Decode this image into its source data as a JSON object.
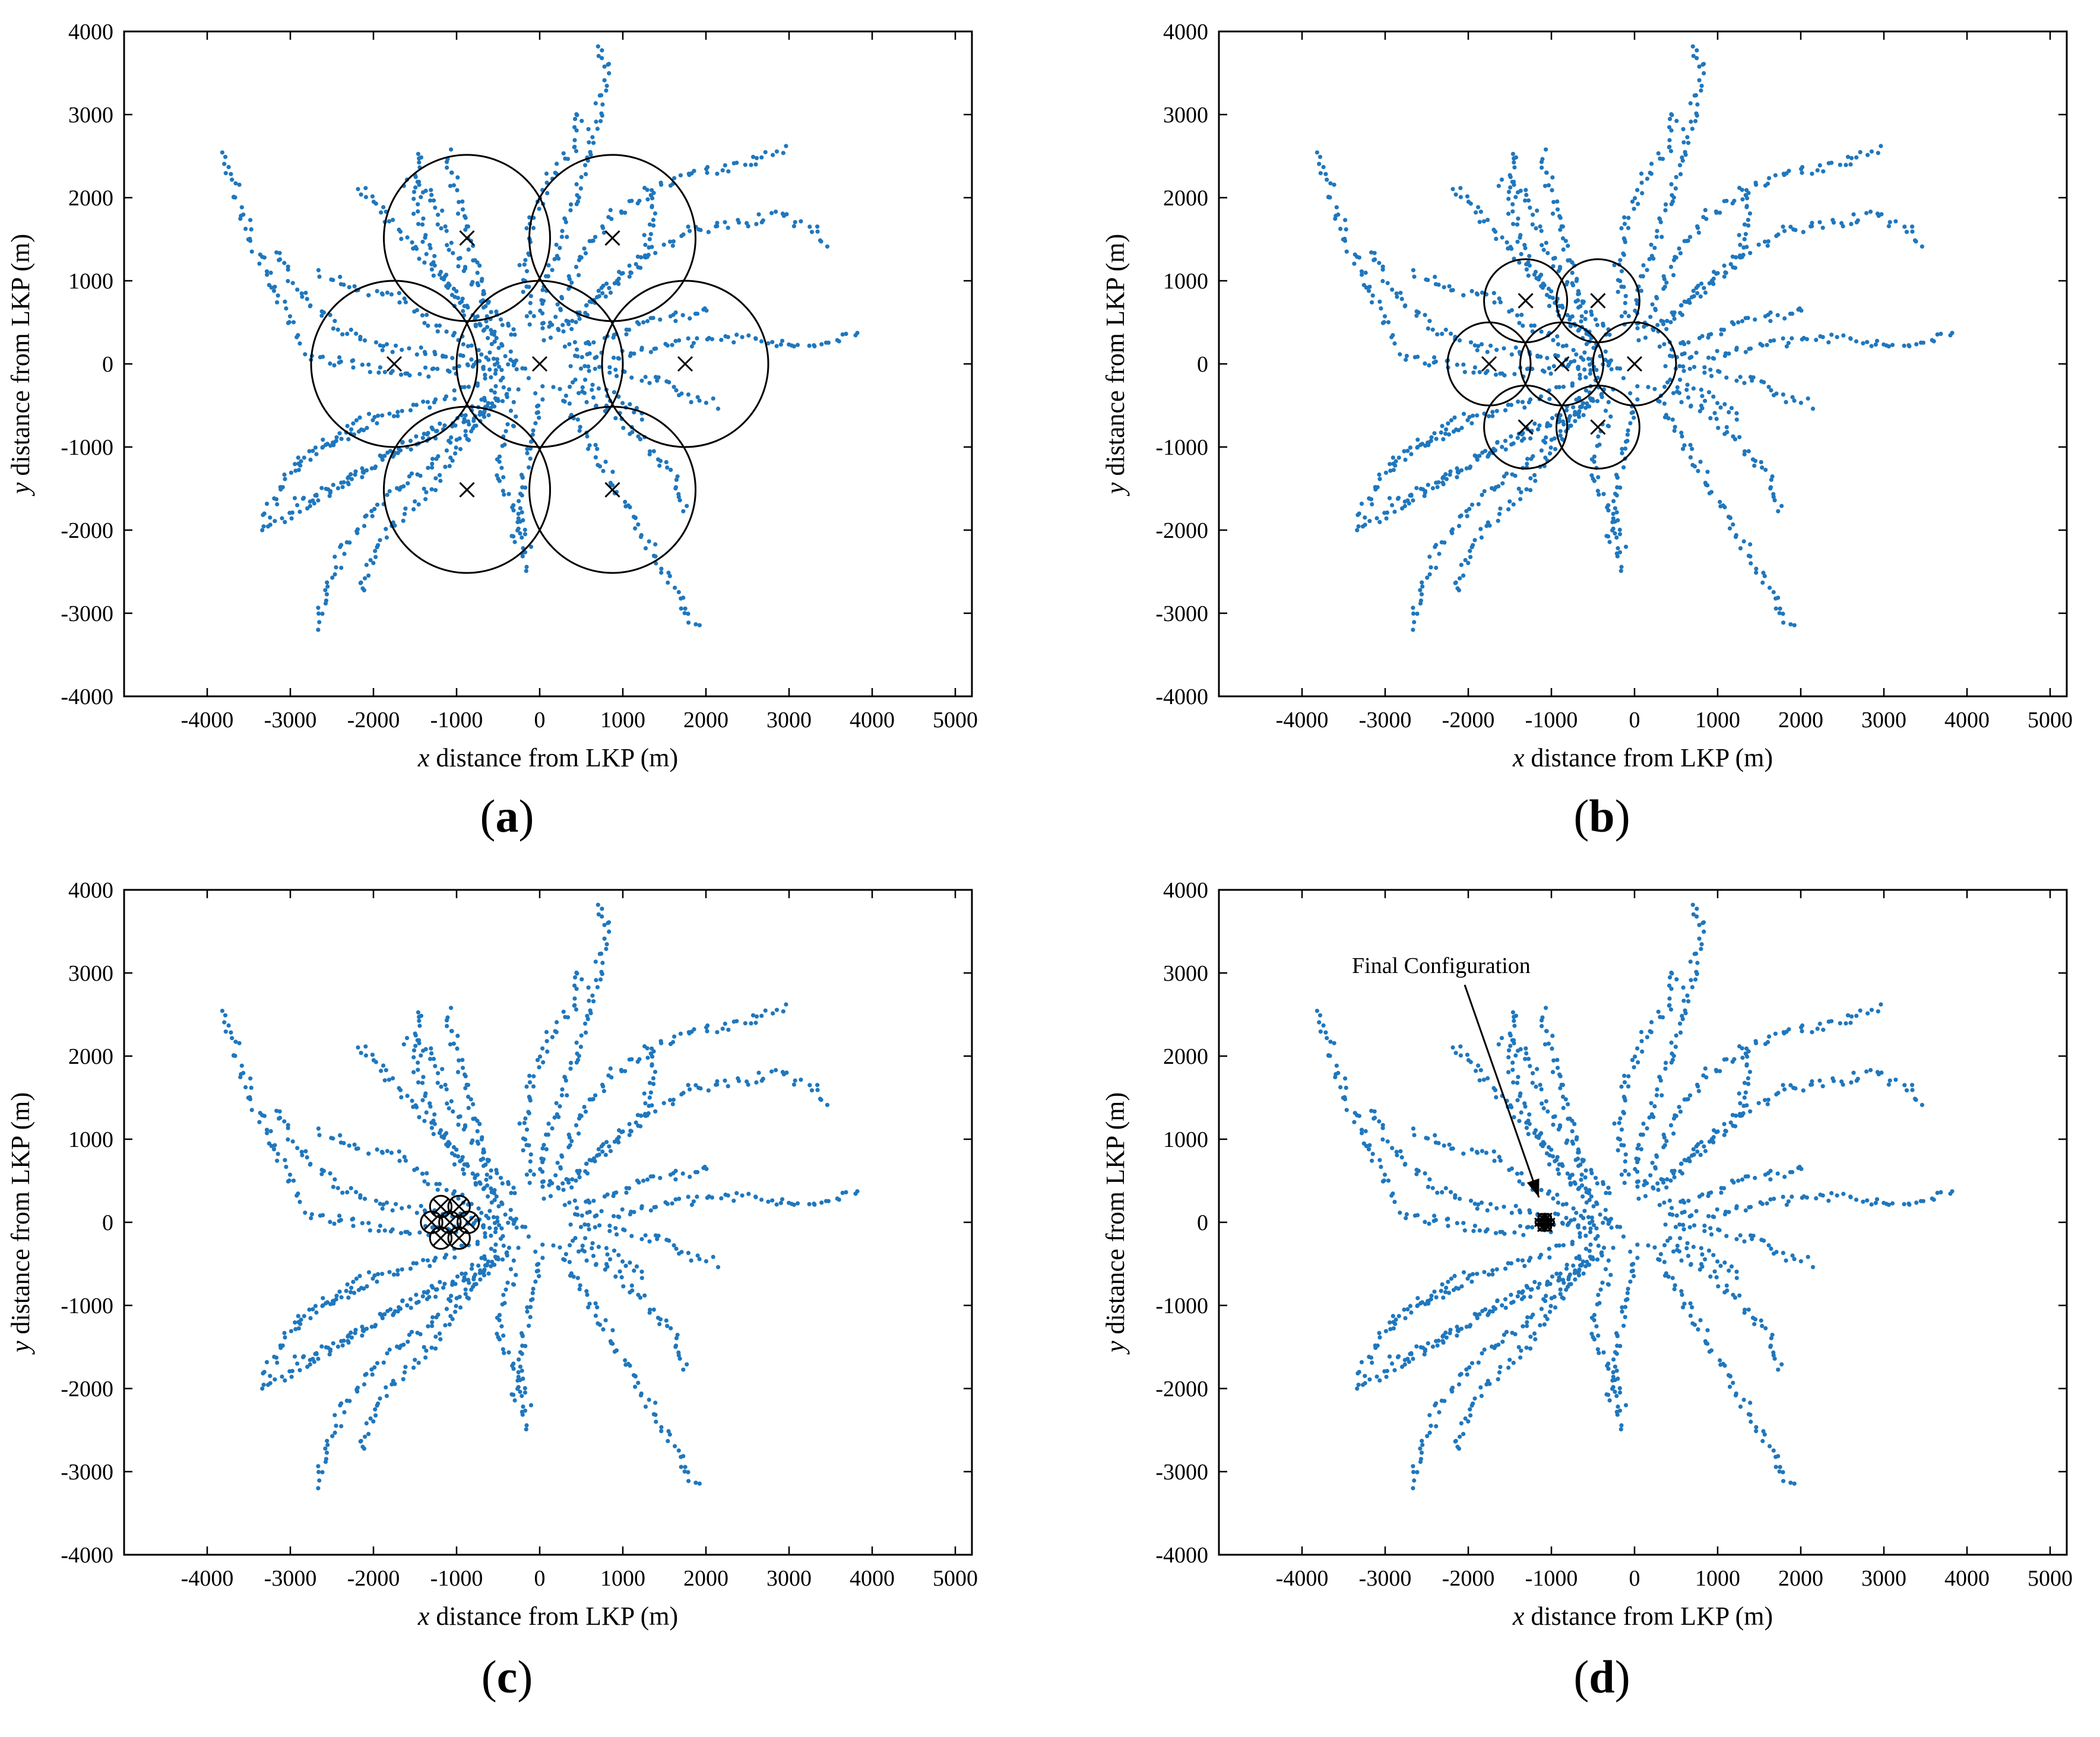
{
  "figure": {
    "captions": [
      "a",
      "b",
      "c",
      "d"
    ],
    "colors": {
      "trajectory": "#1f77bd",
      "axes": "#000000",
      "circle": "#000000"
    }
  },
  "chart_data": [
    {
      "type": "scatter",
      "panel": "a",
      "xlabel_var": "x",
      "xlabel_rest": " distance from LKP (m)",
      "ylabel_var": "y",
      "ylabel_rest": " distance from LKP (m)",
      "xlim": [
        -5000,
        5200
      ],
      "ylim": [
        -4000,
        4000
      ],
      "xticks": [
        -4000,
        -3000,
        -2000,
        -1000,
        0,
        1000,
        2000,
        3000,
        4000,
        5000
      ],
      "yticks": [
        -4000,
        -3000,
        -2000,
        -1000,
        0,
        1000,
        2000,
        3000,
        4000
      ],
      "grid": false,
      "sensor_radius": 1000,
      "sensors": [
        [
          0,
          0
        ],
        [
          1750,
          0
        ],
        [
          875,
          1515
        ],
        [
          -875,
          1515
        ],
        [
          -1750,
          0
        ],
        [
          -875,
          -1515
        ],
        [
          875,
          -1515
        ]
      ],
      "annotation": null
    },
    {
      "type": "scatter",
      "panel": "b",
      "xlabel_var": "x",
      "xlabel_rest": " distance from LKP (m)",
      "ylabel_var": "y",
      "ylabel_rest": " distance from LKP (m)",
      "xlim": [
        -5000,
        5200
      ],
      "ylim": [
        -4000,
        4000
      ],
      "xticks": [
        -4000,
        -3000,
        -2000,
        -1000,
        0,
        1000,
        2000,
        3000,
        4000,
        5000
      ],
      "yticks": [
        -4000,
        -3000,
        -2000,
        -1000,
        0,
        1000,
        2000,
        3000,
        4000
      ],
      "grid": false,
      "sensor_radius": 500,
      "sensors": [
        [
          -875,
          0
        ],
        [
          0,
          0
        ],
        [
          -440,
          760
        ],
        [
          -1310,
          760
        ],
        [
          -1750,
          0
        ],
        [
          -1310,
          -760
        ],
        [
          -440,
          -760
        ]
      ],
      "annotation": null
    },
    {
      "type": "scatter",
      "panel": "c",
      "xlabel_var": "x",
      "xlabel_rest": " distance from LKP (m)",
      "ylabel_var": "y",
      "ylabel_rest": " distance from LKP (m)",
      "xlim": [
        -5000,
        5200
      ],
      "ylim": [
        -4000,
        4000
      ],
      "xticks": [
        -4000,
        -3000,
        -2000,
        -1000,
        0,
        1000,
        2000,
        3000,
        4000,
        5000
      ],
      "yticks": [
        -4000,
        -3000,
        -2000,
        -1000,
        0,
        1000,
        2000,
        3000,
        4000
      ],
      "grid": false,
      "sensor_radius": 130,
      "sensors": [
        [
          -1080,
          0
        ],
        [
          -860,
          0
        ],
        [
          -970,
          190
        ],
        [
          -1190,
          190
        ],
        [
          -1300,
          0
        ],
        [
          -1190,
          -190
        ],
        [
          -970,
          -190
        ]
      ],
      "annotation": null
    },
    {
      "type": "scatter",
      "panel": "d",
      "xlabel_var": "x",
      "xlabel_rest": " distance from LKP (m)",
      "ylabel_var": "y",
      "ylabel_rest": " distance from LKP (m)",
      "xlim": [
        -5000,
        5200
      ],
      "ylim": [
        -4000,
        4000
      ],
      "xticks": [
        -4000,
        -3000,
        -2000,
        -1000,
        0,
        1000,
        2000,
        3000,
        4000,
        5000
      ],
      "yticks": [
        -4000,
        -3000,
        -2000,
        -1000,
        0,
        1000,
        2000,
        3000,
        4000
      ],
      "grid": false,
      "sensor_radius": 40,
      "sensors": [
        [
          -1080,
          0
        ],
        [
          -1010,
          0
        ],
        [
          -1045,
          60
        ],
        [
          -1115,
          60
        ],
        [
          -1150,
          0
        ],
        [
          -1115,
          -60
        ],
        [
          -1045,
          -60
        ]
      ],
      "annotation": {
        "text": "Final Configuration",
        "text_at": [
          -3400,
          3000
        ],
        "arrow_to": [
          -1150,
          300
        ]
      }
    }
  ],
  "trajectories": {
    "description_units": "m",
    "paths": [
      [
        [
          -150,
          -150
        ],
        [
          -500,
          200
        ],
        [
          -900,
          700
        ],
        [
          -1300,
          1300
        ],
        [
          -1500,
          1900
        ],
        [
          -1400,
          2600
        ]
      ],
      [
        [
          -300,
          -100
        ],
        [
          -800,
          200
        ],
        [
          -1300,
          500
        ],
        [
          -1700,
          800
        ],
        [
          -2200,
          900
        ],
        [
          -2700,
          1100
        ]
      ],
      [
        [
          -400,
          200
        ],
        [
          -900,
          600
        ],
        [
          -1300,
          1200
        ],
        [
          -1800,
          1700
        ],
        [
          -2200,
          2200
        ]
      ],
      [
        [
          -300,
          300
        ],
        [
          -700,
          800
        ],
        [
          -1100,
          1500
        ],
        [
          -1300,
          2100
        ],
        [
          -1700,
          2200
        ]
      ],
      [
        [
          -600,
          0
        ],
        [
          -1200,
          100
        ],
        [
          -1800,
          200
        ],
        [
          -2400,
          400
        ],
        [
          -2900,
          900
        ],
        [
          -3200,
          1400
        ]
      ],
      [
        [
          -500,
          0
        ],
        [
          -1200,
          -100
        ],
        [
          -1800,
          -100
        ],
        [
          -2300,
          0
        ],
        [
          -2900,
          100
        ]
      ],
      [
        [
          -500,
          -100
        ],
        [
          -1100,
          -400
        ],
        [
          -1800,
          -600
        ],
        [
          -2400,
          -900
        ],
        [
          -3000,
          -1200
        ]
      ],
      [
        [
          -400,
          -200
        ],
        [
          -1000,
          -700
        ],
        [
          -1700,
          -1000
        ],
        [
          -2300,
          -1400
        ],
        [
          -2800,
          -1700
        ],
        [
          -3300,
          -2000
        ]
      ],
      [
        [
          -400,
          -300
        ],
        [
          -900,
          -800
        ],
        [
          -1400,
          -1300
        ],
        [
          -2000,
          -1700
        ],
        [
          -2400,
          -2300
        ],
        [
          -2600,
          -2900
        ],
        [
          -2700,
          -3200
        ]
      ],
      [
        [
          -500,
          -400
        ],
        [
          -900,
          -900
        ],
        [
          -1300,
          -1500
        ],
        [
          -1700,
          -1900
        ],
        [
          -2000,
          -2300
        ],
        [
          -2200,
          -2800
        ]
      ],
      [
        [
          -300,
          -300
        ],
        [
          -700,
          -600
        ],
        [
          -1200,
          -800
        ],
        [
          -1800,
          -1100
        ],
        [
          -2500,
          -1500
        ],
        [
          -3000,
          -1700
        ]
      ],
      [
        [
          -2900,
          300
        ],
        [
          -3300,
          1100
        ],
        [
          -3600,
          1900
        ],
        [
          -3800,
          2600
        ]
      ],
      [
        [
          -2000,
          -600
        ],
        [
          -2500,
          -900
        ],
        [
          -3000,
          -1300
        ],
        [
          -3400,
          -2000
        ]
      ],
      [
        [
          -600,
          500
        ],
        [
          -800,
          1300
        ],
        [
          -1000,
          2000
        ],
        [
          -1100,
          2600
        ]
      ],
      [
        [
          0,
          -300
        ],
        [
          -100,
          -900
        ],
        [
          -200,
          -1500
        ],
        [
          -300,
          -2100
        ],
        [
          -100,
          -2500
        ]
      ],
      [
        [
          -300,
          -500
        ],
        [
          -400,
          -900
        ],
        [
          -500,
          -1300
        ],
        [
          -300,
          -1800
        ],
        [
          -100,
          -2200
        ]
      ],
      [
        [
          200,
          -300
        ],
        [
          500,
          -800
        ],
        [
          800,
          -1300
        ],
        [
          1100,
          -1800
        ],
        [
          1400,
          -2300
        ],
        [
          1700,
          -2900
        ],
        [
          1900,
          -3200
        ]
      ],
      [
        [
          400,
          -300
        ],
        [
          900,
          -600
        ],
        [
          1300,
          -1000
        ],
        [
          1600,
          -1300
        ],
        [
          1800,
          -1800
        ]
      ],
      [
        [
          400,
          -200
        ],
        [
          900,
          -400
        ],
        [
          1300,
          -700
        ]
      ],
      [
        [
          300,
          200
        ],
        [
          800,
          300
        ],
        [
          1300,
          500
        ],
        [
          1800,
          600
        ],
        [
          2100,
          700
        ]
      ],
      [
        [
          400,
          100
        ],
        [
          1000,
          100
        ],
        [
          1500,
          200
        ],
        [
          2000,
          300
        ],
        [
          2500,
          300
        ],
        [
          3100,
          200
        ],
        [
          3500,
          300
        ],
        [
          3900,
          400
        ]
      ],
      [
        [
          400,
          0
        ],
        [
          900,
          -100
        ],
        [
          1400,
          -200
        ],
        [
          1800,
          -400
        ],
        [
          2200,
          -500
        ]
      ],
      [
        [
          100,
          300
        ],
        [
          300,
          800
        ],
        [
          500,
          1300
        ],
        [
          900,
          1800
        ],
        [
          1400,
          2100
        ],
        [
          1900,
          2300
        ],
        [
          2500,
          2400
        ],
        [
          3000,
          2600
        ]
      ],
      [
        [
          300,
          400
        ],
        [
          800,
          900
        ],
        [
          1300,
          1300
        ],
        [
          1800,
          1600
        ],
        [
          2400,
          1700
        ],
        [
          2900,
          1800
        ],
        [
          3300,
          1600
        ],
        [
          3500,
          1400
        ]
      ],
      [
        [
          0,
          400
        ],
        [
          100,
          1000
        ],
        [
          300,
          1600
        ],
        [
          500,
          2300
        ],
        [
          700,
          3000
        ],
        [
          800,
          3600
        ],
        [
          700,
          3900
        ]
      ],
      [
        [
          -100,
          500
        ],
        [
          -200,
          1100
        ],
        [
          -100,
          1700
        ],
        [
          100,
          2200
        ],
        [
          400,
          2600
        ],
        [
          500,
          3100
        ]
      ],
      [
        [
          200,
          400
        ],
        [
          700,
          800
        ],
        [
          1200,
          1300
        ],
        [
          1400,
          1800
        ],
        [
          1300,
          2200
        ]
      ]
    ]
  }
}
